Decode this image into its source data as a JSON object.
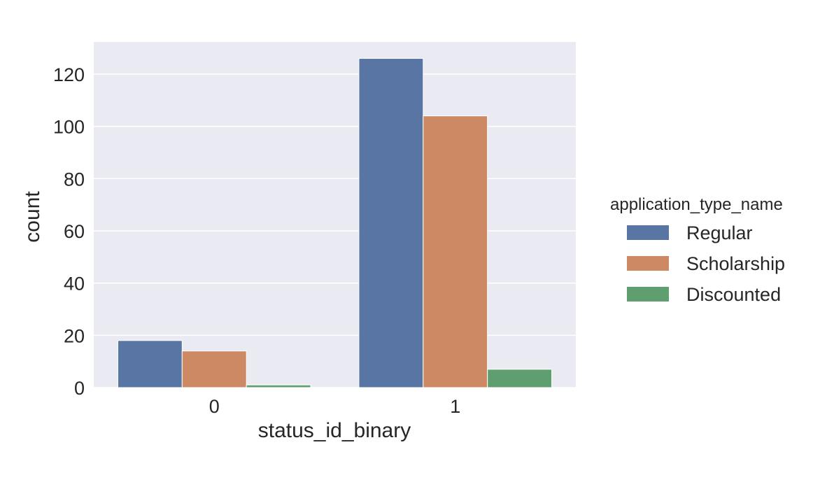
{
  "chart_data": {
    "type": "bar",
    "categories": [
      "0",
      "1"
    ],
    "series": [
      {
        "name": "Regular",
        "values": [
          18,
          126
        ]
      },
      {
        "name": "Scholarship",
        "values": [
          14,
          104
        ]
      },
      {
        "name": "Discounted",
        "values": [
          1,
          7
        ]
      }
    ],
    "colors": [
      "#5875a4",
      "#cc8963",
      "#5f9e6e"
    ],
    "xlabel": "status_id_binary",
    "ylabel": "count",
    "ylim": [
      0,
      132.3
    ],
    "yticks": [
      0,
      20,
      40,
      60,
      80,
      100,
      120
    ],
    "legend_title": "application_type_name",
    "legend_position": "right",
    "grid": true,
    "background": "#eaeaf2"
  }
}
